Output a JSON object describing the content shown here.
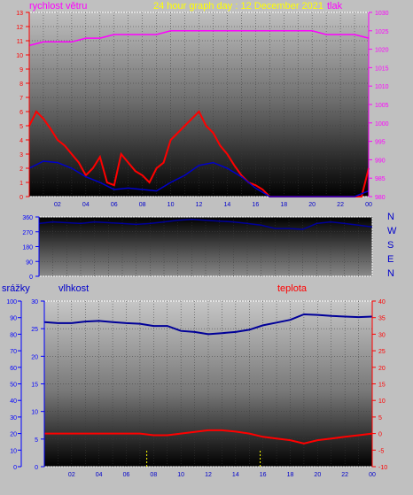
{
  "header": {
    "left_label": "rychlost větru",
    "center_label": "24 hour graph day : 12 December 2021",
    "right_label": "tlak"
  },
  "middle": {
    "compass_labels": [
      "N",
      "W",
      "S",
      "E",
      "N"
    ]
  },
  "footer": {
    "left_label": "srážky",
    "middle_label": "vlhkost",
    "right_label": "teplota"
  },
  "colors": {
    "wind": "#ff0000",
    "wind_avg": "#0000cc",
    "pressure": "#ff00ff",
    "direction": "#000099",
    "humidity": "#000099",
    "temperature": "#ff0000",
    "rain": "#ffff00",
    "axis_blue": "#0000ff",
    "axis_red": "#ff0000",
    "axis_magenta": "#ff00ff"
  },
  "chart_data": [
    {
      "type": "line",
      "name": "wind_pressure",
      "x_tick_labels": [
        "02",
        "04",
        "06",
        "08",
        "10",
        "12",
        "14",
        "16",
        "18",
        "20",
        "22",
        "00"
      ],
      "x_range_hours": [
        0,
        24
      ],
      "y_left_ticks": [
        0,
        1,
        2,
        3,
        4,
        5,
        6,
        7,
        8,
        9,
        10,
        11,
        12,
        13
      ],
      "y_left_range": [
        0,
        13
      ],
      "y_right_ticks": [
        980,
        985,
        990,
        995,
        1000,
        1005,
        1010,
        1015,
        1020,
        1025,
        1030
      ],
      "y_right_range": [
        980,
        1030
      ],
      "series": [
        {
          "axis": "right",
          "color": "#ff00ff",
          "x": [
            0,
            1,
            2,
            3,
            4,
            5,
            6,
            7,
            8,
            9,
            10,
            11,
            12,
            13,
            14,
            15,
            16,
            17,
            18,
            19,
            20,
            21,
            22,
            23,
            24
          ],
          "values": [
            1021,
            1022,
            1022,
            1022,
            1023,
            1023,
            1024,
            1024,
            1024,
            1024,
            1025,
            1025,
            1025,
            1025,
            1025,
            1025,
            1025,
            1025,
            1025,
            1025,
            1025,
            1024,
            1024,
            1024,
            1023
          ]
        },
        {
          "axis": "left",
          "color": "#ff0000",
          "x": [
            0,
            0.5,
            1,
            1.5,
            2,
            2.5,
            3,
            3.5,
            4,
            4.5,
            5,
            5.5,
            6,
            6.5,
            7,
            7.5,
            8,
            8.5,
            9,
            9.5,
            10,
            10.5,
            11,
            11.5,
            12,
            12.5,
            13,
            13.5,
            14,
            14.5,
            15,
            15.5,
            16,
            16.5,
            17,
            17.5,
            18,
            18.5,
            19,
            19.5,
            20,
            20.5,
            21,
            21.5,
            22,
            22.5,
            23,
            23.5,
            24
          ],
          "values": [
            5,
            6,
            5.5,
            4.8,
            4,
            3.6,
            3,
            2.4,
            1.5,
            2,
            2.8,
            1,
            0.8,
            3,
            2.4,
            1.8,
            1.5,
            1,
            2,
            2.4,
            4,
            4.5,
            5,
            5.5,
            6,
            5,
            4.5,
            3.6,
            3,
            2.2,
            1.5,
            1,
            0.8,
            0.5,
            0,
            0,
            0,
            0,
            0,
            0,
            0,
            0,
            0,
            0,
            0,
            0,
            0,
            0,
            2
          ]
        },
        {
          "axis": "left",
          "color": "#0000cc",
          "x": [
            0,
            1,
            2,
            3,
            4,
            5,
            6,
            7,
            8,
            9,
            10,
            11,
            12,
            13,
            14,
            15,
            16,
            17,
            18,
            19,
            20,
            21,
            22,
            23,
            24
          ],
          "values": [
            2,
            2.5,
            2.4,
            2,
            1.4,
            1,
            0.5,
            0.6,
            0.5,
            0.4,
            1,
            1.5,
            2.2,
            2.4,
            2,
            1.4,
            0.6,
            0,
            0,
            0,
            0,
            0,
            0,
            0,
            0.4
          ]
        }
      ]
    },
    {
      "type": "line",
      "name": "wind_direction",
      "y_ticks": [
        0,
        90,
        180,
        270,
        360
      ],
      "y_range": [
        0,
        360
      ],
      "series": [
        {
          "color": "#000099",
          "x": [
            0,
            1,
            2,
            3,
            4,
            5,
            6,
            7,
            8,
            9,
            10,
            11,
            12,
            13,
            14,
            15,
            16,
            17,
            18,
            19,
            20,
            21,
            22,
            23,
            24
          ],
          "values": [
            320,
            330,
            325,
            320,
            330,
            325,
            320,
            315,
            320,
            330,
            340,
            345,
            340,
            335,
            330,
            320,
            310,
            290,
            290,
            285,
            320,
            330,
            320,
            310,
            300
          ]
        }
      ]
    },
    {
      "type": "line",
      "name": "humidity_temperature",
      "y_left_ticks_rain": [
        0,
        10,
        20,
        30,
        40,
        50,
        60,
        70,
        80,
        90,
        100
      ],
      "y_left_range_rain": [
        0,
        100
      ],
      "y_left_ticks_humidity": [
        0,
        5,
        10,
        15,
        20,
        25,
        30
      ],
      "y_left_range_humidity": [
        0,
        30
      ],
      "y_right_ticks": [
        -10,
        -5,
        0,
        5,
        10,
        15,
        20,
        25,
        30,
        35,
        40
      ],
      "y_right_range": [
        -10,
        40
      ],
      "series": [
        {
          "axis": "humidity",
          "color": "#000099",
          "x": [
            0,
            1,
            2,
            3,
            4,
            5,
            6,
            7,
            8,
            9,
            10,
            11,
            12,
            13,
            14,
            15,
            16,
            17,
            18,
            19,
            20,
            21,
            22,
            23,
            24
          ],
          "values": [
            26.2,
            26,
            26,
            26.3,
            26.4,
            26.2,
            26,
            25.9,
            25.5,
            25.5,
            24.6,
            24.4,
            24,
            24.2,
            24.4,
            24.8,
            25.6,
            26.1,
            26.6,
            27.6,
            27.5,
            27.3,
            27.2,
            27.1,
            27.2
          ]
        },
        {
          "axis": "right",
          "color": "#ff0000",
          "x": [
            0,
            1,
            2,
            3,
            4,
            5,
            6,
            7,
            8,
            9,
            10,
            11,
            12,
            13,
            14,
            15,
            16,
            17,
            18,
            19,
            20,
            21,
            22,
            23,
            24
          ],
          "values": [
            0,
            0,
            0,
            0,
            0,
            0,
            0,
            0,
            -0.5,
            -0.5,
            0,
            0.5,
            1,
            1,
            0.6,
            0,
            -1,
            -1.5,
            -2,
            -3,
            -2,
            -1.5,
            -1,
            -0.5,
            0
          ]
        },
        {
          "axis": "rain",
          "color": "#ffff00",
          "x": [
            7.5,
            15.8
          ],
          "values": [
            0,
            0
          ]
        }
      ]
    }
  ]
}
